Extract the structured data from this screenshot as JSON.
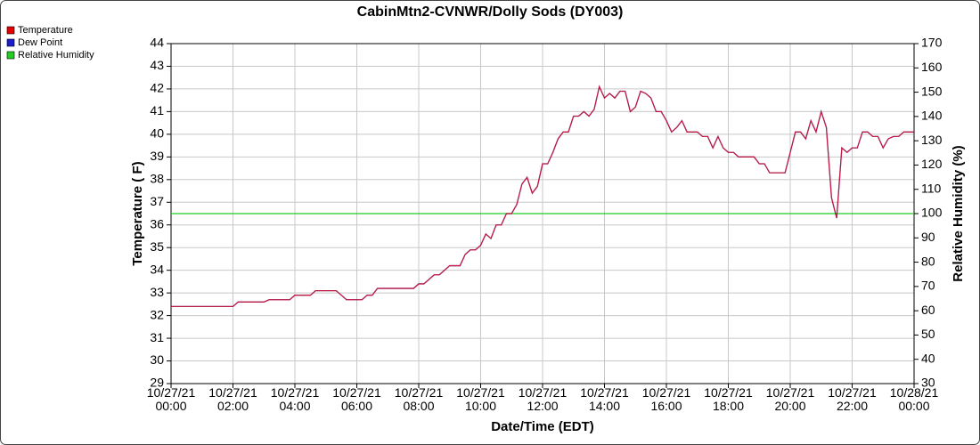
{
  "chart_data": {
    "type": "line",
    "title": "CabinMtn2-CVNWR/Dolly Sods (DY003)",
    "x_label": "Date/Time (EDT)",
    "y_label": "Temperature ( F)",
    "y2_label": "Relative Humidity (%)",
    "grid": true,
    "legend": "top-left",
    "x": [
      "10/27/21 00:00",
      "10/27/21 02:00",
      "10/27/21 02:10",
      "10/27/21 03:00",
      "10/27/21 03:10",
      "10/27/21 03:50",
      "10/27/21 04:00",
      "10/27/21 04:30",
      "10/27/21 04:40",
      "10/27/21 05:20",
      "10/27/21 05:40",
      "10/27/21 06:10",
      "10/27/21 06:20",
      "10/27/21 06:30",
      "10/27/21 06:40",
      "10/27/21 07:50",
      "10/27/21 08:00",
      "10/27/21 08:10",
      "10/27/21 08:20",
      "10/27/21 08:30",
      "10/27/21 08:40",
      "10/27/21 08:50",
      "10/27/21 09:00",
      "10/27/21 09:10",
      "10/27/21 09:20",
      "10/27/21 09:30",
      "10/27/21 09:40",
      "10/27/21 09:50",
      "10/27/21 10:00",
      "10/27/21 10:10",
      "10/27/21 10:20",
      "10/27/21 10:30",
      "10/27/21 10:40",
      "10/27/21 10:50",
      "10/27/21 11:00",
      "10/27/21 11:10",
      "10/27/21 11:20",
      "10/27/21 11:30",
      "10/27/21 11:40",
      "10/27/21 11:50",
      "10/27/21 12:00",
      "10/27/21 12:10",
      "10/27/21 12:20",
      "10/27/21 12:30",
      "10/27/21 12:40",
      "10/27/21 12:50",
      "10/27/21 13:00",
      "10/27/21 13:10",
      "10/27/21 13:20",
      "10/27/21 13:30",
      "10/27/21 13:40",
      "10/27/21 13:50",
      "10/27/21 14:00",
      "10/27/21 14:10",
      "10/27/21 14:20",
      "10/27/21 14:30",
      "10/27/21 14:40",
      "10/27/21 14:50",
      "10/27/21 15:00",
      "10/27/21 15:10",
      "10/27/21 15:20",
      "10/27/21 15:30",
      "10/27/21 15:40",
      "10/27/21 15:50",
      "10/27/21 16:00",
      "10/27/21 16:10",
      "10/27/21 16:20",
      "10/27/21 16:30",
      "10/27/21 16:40",
      "10/27/21 16:50",
      "10/27/21 17:00",
      "10/27/21 17:10",
      "10/27/21 17:20",
      "10/27/21 17:30",
      "10/27/21 17:40",
      "10/27/21 17:50",
      "10/27/21 18:00",
      "10/27/21 18:10",
      "10/27/21 18:20",
      "10/27/21 18:30",
      "10/27/21 18:40",
      "10/27/21 18:50",
      "10/27/21 19:00",
      "10/27/21 19:10",
      "10/27/21 19:20",
      "10/27/21 19:30",
      "10/27/21 19:40",
      "10/27/21 19:50",
      "10/27/21 20:00",
      "10/27/21 20:10",
      "10/27/21 20:20",
      "10/27/21 20:30",
      "10/27/21 20:40",
      "10/27/21 20:50",
      "10/27/21 21:00",
      "10/27/21 21:10",
      "10/27/21 21:20",
      "10/27/21 21:30",
      "10/27/21 21:40",
      "10/27/21 21:50",
      "10/27/21 22:00",
      "10/27/21 22:10",
      "10/27/21 22:20",
      "10/27/21 22:30",
      "10/27/21 22:40",
      "10/27/21 22:50",
      "10/27/21 23:00",
      "10/27/21 23:10",
      "10/27/21 23:20",
      "10/27/21 23:30",
      "10/27/21 23:40",
      "10/27/21 23:50",
      "10/28/21 00:00"
    ],
    "series": [
      {
        "name": "Temperature",
        "color": "#e60000",
        "values": [
          32.4,
          32.4,
          32.6,
          32.6,
          32.7,
          32.7,
          32.9,
          32.9,
          33.1,
          33.1,
          32.7,
          32.7,
          32.9,
          32.9,
          33.2,
          33.2,
          33.4,
          33.4,
          33.6,
          33.8,
          33.8,
          34.0,
          34.2,
          34.2,
          34.2,
          34.7,
          34.9,
          34.9,
          35.1,
          35.6,
          35.4,
          36.0,
          36.0,
          36.5,
          36.5,
          36.9,
          37.8,
          38.1,
          37.4,
          37.7,
          38.7,
          38.7,
          39.2,
          39.8,
          40.1,
          40.1,
          40.8,
          40.8,
          41.0,
          40.8,
          41.1,
          42.1,
          41.6,
          41.8,
          41.6,
          41.9,
          41.9,
          41.0,
          41.2,
          41.9,
          41.8,
          41.6,
          41.0,
          41.0,
          40.6,
          40.1,
          40.3,
          40.6,
          40.1,
          40.1,
          40.1,
          39.9,
          39.9,
          39.4,
          39.9,
          39.4,
          39.2,
          39.2,
          39.0,
          39.0,
          39.0,
          39.0,
          38.7,
          38.7,
          38.3,
          38.3,
          38.3,
          38.3,
          39.2,
          40.1,
          40.1,
          39.8,
          40.6,
          40.1,
          41.0,
          40.3,
          37.2,
          36.3,
          39.4,
          39.2,
          39.4,
          39.4,
          40.1,
          40.1,
          39.9,
          39.9,
          39.4,
          39.8,
          39.9,
          39.9,
          40.1,
          40.1,
          40.1
        ]
      },
      {
        "name": "Dew Point",
        "color": "#1c1cd0",
        "values": [
          32.4,
          32.4,
          32.6,
          32.6,
          32.7,
          32.7,
          32.9,
          32.9,
          33.1,
          33.1,
          32.7,
          32.7,
          32.9,
          32.9,
          33.2,
          33.2,
          33.4,
          33.4,
          33.6,
          33.8,
          33.8,
          34.0,
          34.2,
          34.2,
          34.2,
          34.7,
          34.9,
          34.9,
          35.1,
          35.6,
          35.4,
          36.0,
          36.0,
          36.5,
          36.5,
          36.9,
          37.8,
          38.1,
          37.4,
          37.7,
          38.7,
          38.7,
          39.2,
          39.8,
          40.1,
          40.1,
          40.8,
          40.8,
          41.0,
          40.8,
          41.1,
          42.1,
          41.6,
          41.8,
          41.6,
          41.9,
          41.9,
          41.0,
          41.2,
          41.9,
          41.8,
          41.6,
          41.0,
          41.0,
          40.6,
          40.1,
          40.3,
          40.6,
          40.1,
          40.1,
          40.1,
          39.9,
          39.9,
          39.4,
          39.9,
          39.4,
          39.2,
          39.2,
          39.0,
          39.0,
          39.0,
          39.0,
          38.7,
          38.7,
          38.3,
          38.3,
          38.3,
          38.3,
          39.2,
          40.1,
          40.1,
          39.8,
          40.6,
          40.1,
          41.0,
          40.3,
          37.2,
          36.3,
          39.4,
          39.2,
          39.4,
          39.4,
          40.1,
          40.1,
          39.9,
          39.9,
          39.4,
          39.8,
          39.9,
          39.9,
          40.1,
          40.1,
          40.1
        ]
      },
      {
        "name": "Relative Humidity",
        "color": "#22cc22",
        "axis": "y2",
        "values": [
          100,
          100,
          100,
          100,
          100,
          100,
          100,
          100,
          100,
          100,
          100,
          100,
          100,
          100,
          100,
          100,
          100,
          100,
          100,
          100,
          100,
          100,
          100,
          100,
          100,
          100,
          100,
          100,
          100,
          100,
          100,
          100,
          100,
          100,
          100,
          100,
          100,
          100,
          100,
          100,
          100,
          100,
          100,
          100,
          100,
          100,
          100,
          100,
          100,
          100,
          100,
          100,
          100,
          100,
          100,
          100,
          100,
          100,
          100,
          100,
          100,
          100,
          100,
          100,
          100,
          100,
          100,
          100,
          100,
          100,
          100,
          100,
          100,
          100,
          100,
          100,
          100,
          100,
          100,
          100,
          100,
          100,
          100,
          100,
          100,
          100,
          100,
          100,
          100,
          100,
          100,
          100,
          100,
          100,
          100,
          100,
          100,
          100,
          100,
          100,
          100,
          100,
          100,
          100,
          100,
          100,
          100,
          100,
          100,
          100,
          100,
          100,
          100
        ]
      }
    ],
    "xlim": [
      "10/27/21 00:00",
      "10/28/21 00:00"
    ],
    "xticks": [
      "10/27/21 00:00",
      "10/27/21 02:00",
      "10/27/21 04:00",
      "10/27/21 06:00",
      "10/27/21 08:00",
      "10/27/21 10:00",
      "10/27/21 12:00",
      "10/27/21 14:00",
      "10/27/21 16:00",
      "10/27/21 18:00",
      "10/27/21 20:00",
      "10/27/21 22:00",
      "10/28/21 00:00"
    ],
    "ylim": [
      29,
      44
    ],
    "yticks": [
      29,
      30,
      31,
      32,
      33,
      34,
      35,
      36,
      37,
      38,
      39,
      40,
      41,
      42,
      43,
      44
    ],
    "y2lim": [
      30,
      170
    ],
    "y2ticks": [
      30,
      40,
      50,
      60,
      70,
      80,
      90,
      100,
      110,
      120,
      130,
      140,
      150,
      160,
      170
    ]
  }
}
